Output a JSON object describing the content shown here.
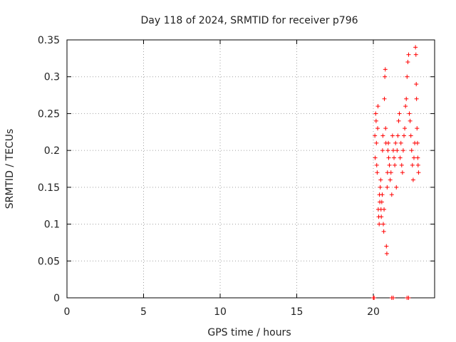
{
  "chart_data": {
    "type": "scatter",
    "title": "Day 118 of 2024, SRMTID for receiver p796",
    "xlabel": "GPS time / hours",
    "ylabel": "SRMTID / TECUs",
    "xlim": [
      0,
      24
    ],
    "ylim": [
      0,
      0.35
    ],
    "grid": true,
    "marker": "+",
    "color": "#ff0000",
    "xticks": [
      0,
      5,
      10,
      15,
      20
    ],
    "xtick_labels": [
      "0",
      "5",
      "10",
      "15",
      "20"
    ],
    "yticks": [
      0,
      0.05,
      0.1,
      0.15,
      0.2,
      0.25,
      0.3,
      0.35
    ],
    "ytick_labels": [
      "0",
      "0.05",
      "0.1",
      "0.15",
      "0.2",
      "0.25",
      "0.3",
      "0.35"
    ],
    "series": [
      {
        "name": "SRMTID",
        "points": [
          [
            20.0,
            0.0
          ],
          [
            20.05,
            0.0
          ],
          [
            21.2,
            0.0
          ],
          [
            21.3,
            0.0
          ],
          [
            22.2,
            0.0
          ],
          [
            22.3,
            0.0
          ],
          [
            20.1,
            0.22
          ],
          [
            20.12,
            0.19
          ],
          [
            20.15,
            0.25
          ],
          [
            20.18,
            0.24
          ],
          [
            20.2,
            0.21
          ],
          [
            20.22,
            0.18
          ],
          [
            20.25,
            0.17
          ],
          [
            20.28,
            0.23
          ],
          [
            20.3,
            0.26
          ],
          [
            20.32,
            0.12
          ],
          [
            20.35,
            0.11
          ],
          [
            20.38,
            0.1
          ],
          [
            20.4,
            0.14
          ],
          [
            20.42,
            0.13
          ],
          [
            20.45,
            0.15
          ],
          [
            20.48,
            0.16
          ],
          [
            20.5,
            0.12
          ],
          [
            20.52,
            0.11
          ],
          [
            20.55,
            0.13
          ],
          [
            20.58,
            0.14
          ],
          [
            20.6,
            0.2
          ],
          [
            20.62,
            0.22
          ],
          [
            20.65,
            0.1
          ],
          [
            20.68,
            0.09
          ],
          [
            20.7,
            0.12
          ],
          [
            20.72,
            0.27
          ],
          [
            20.75,
            0.3
          ],
          [
            20.78,
            0.31
          ],
          [
            20.8,
            0.23
          ],
          [
            20.82,
            0.21
          ],
          [
            20.85,
            0.07
          ],
          [
            20.88,
            0.06
          ],
          [
            20.9,
            0.15
          ],
          [
            20.92,
            0.17
          ],
          [
            20.95,
            0.2
          ],
          [
            20.98,
            0.21
          ],
          [
            21.0,
            0.19
          ],
          [
            21.05,
            0.18
          ],
          [
            21.1,
            0.16
          ],
          [
            21.15,
            0.17
          ],
          [
            21.2,
            0.14
          ],
          [
            21.25,
            0.22
          ],
          [
            21.3,
            0.2
          ],
          [
            21.35,
            0.19
          ],
          [
            21.4,
            0.18
          ],
          [
            21.45,
            0.21
          ],
          [
            21.5,
            0.15
          ],
          [
            21.55,
            0.2
          ],
          [
            21.6,
            0.22
          ],
          [
            21.65,
            0.24
          ],
          [
            21.7,
            0.25
          ],
          [
            21.75,
            0.19
          ],
          [
            21.8,
            0.21
          ],
          [
            21.85,
            0.18
          ],
          [
            21.9,
            0.17
          ],
          [
            21.95,
            0.2
          ],
          [
            22.0,
            0.22
          ],
          [
            22.05,
            0.23
          ],
          [
            22.1,
            0.26
          ],
          [
            22.15,
            0.27
          ],
          [
            22.2,
            0.3
          ],
          [
            22.25,
            0.32
          ],
          [
            22.3,
            0.33
          ],
          [
            22.35,
            0.25
          ],
          [
            22.4,
            0.24
          ],
          [
            22.45,
            0.22
          ],
          [
            22.5,
            0.2
          ],
          [
            22.55,
            0.18
          ],
          [
            22.6,
            0.16
          ],
          [
            22.65,
            0.19
          ],
          [
            22.7,
            0.21
          ],
          [
            22.75,
            0.34
          ],
          [
            22.78,
            0.33
          ],
          [
            22.8,
            0.29
          ],
          [
            22.82,
            0.27
          ],
          [
            22.85,
            0.23
          ],
          [
            22.88,
            0.21
          ],
          [
            22.9,
            0.19
          ],
          [
            22.92,
            0.18
          ],
          [
            22.95,
            0.17
          ]
        ]
      }
    ]
  }
}
